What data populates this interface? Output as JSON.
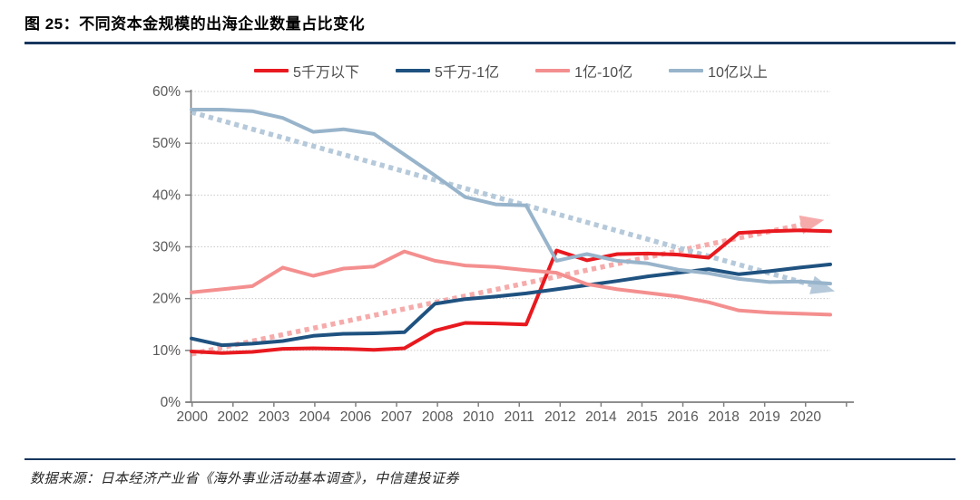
{
  "page": {
    "title": "图 25：不同资本金规模的出海企业数量占比变化",
    "source_text": "数据来源：日本经济产业省《海外事业活动基本调查》，中信建投证券"
  },
  "colors": {
    "accent_rule": "#17365d",
    "red": "#e8191f",
    "dark_blue": "#1f5280",
    "pink": "#f48f8f",
    "light_blue": "#98b4cb",
    "pink_trend": "#f6abab",
    "light_blue_trend": "#b5c9da",
    "grid": "#c9c9c9",
    "axis": "#7f7f7f",
    "tick_text": "#595959",
    "legend_text": "#4d4d4d"
  },
  "chart_data": {
    "type": "line",
    "title": "",
    "xlabel": "",
    "ylabel": "",
    "ylim": [
      0,
      60
    ],
    "grid": "horizontal-dotted",
    "legend_position": "top",
    "y_tick_labels": [
      "0%",
      "10%",
      "20%",
      "30%",
      "40%",
      "50%",
      "60%"
    ],
    "x_axis_labels": [
      "2000",
      "2002",
      "2003",
      "2004",
      "2006",
      "2007",
      "2008",
      "2010",
      "2011",
      "2012",
      "2014",
      "2015",
      "2016",
      "2018",
      "2019",
      "2020"
    ],
    "years": [
      2000,
      2001,
      2002,
      2003,
      2004,
      2005,
      2006,
      2007,
      2008,
      2009,
      2010,
      2011,
      2012,
      2013,
      2014,
      2015,
      2016,
      2017,
      2018,
      2019,
      2020,
      2021
    ],
    "series": [
      {
        "name": "5千万以下",
        "color_key": "red",
        "values": [
          9.8,
          9.5,
          9.7,
          10.3,
          10.4,
          10.3,
          10.1,
          10.4,
          13.8,
          15.3,
          15.2,
          15.0,
          29.3,
          27.4,
          28.6,
          28.7,
          28.5,
          27.9,
          32.7,
          33.0,
          33.2,
          33.0
        ]
      },
      {
        "name": "5千万-1亿",
        "color_key": "dark_blue",
        "values": [
          12.3,
          11.0,
          11.3,
          11.8,
          12.8,
          13.2,
          13.3,
          13.5,
          19.0,
          19.9,
          20.4,
          21.0,
          21.8,
          22.6,
          23.4,
          24.3,
          25.0,
          25.7,
          24.7,
          25.3,
          26.0,
          26.6
        ]
      },
      {
        "name": "1亿-10亿",
        "color_key": "pink",
        "values": [
          21.2,
          21.8,
          22.4,
          26.0,
          24.4,
          25.8,
          26.2,
          29.1,
          27.3,
          26.4,
          26.1,
          25.5,
          25.0,
          22.8,
          21.8,
          21.1,
          20.4,
          19.3,
          17.7,
          17.3,
          17.1,
          16.9
        ]
      },
      {
        "name": "10亿以上",
        "color_key": "light_blue",
        "values": [
          56.5,
          56.5,
          56.2,
          54.9,
          52.2,
          52.7,
          51.8,
          47.8,
          43.8,
          39.6,
          38.2,
          38.0,
          27.3,
          28.6,
          27.3,
          26.8,
          25.6,
          24.9,
          23.8,
          23.2,
          23.3,
          22.9
        ]
      }
    ],
    "trendlines": [
      {
        "for": "5千万以下",
        "color_key": "pink_trend",
        "start_value": 9.3,
        "end_value": 35.2,
        "end_year_frac": 20.8,
        "arrow": "up-right"
      },
      {
        "for": "10亿以上",
        "color_key": "light_blue_trend",
        "start_value": 56.0,
        "end_value": 21.4,
        "end_year_frac": 21.15,
        "arrow": "down-right"
      }
    ]
  }
}
